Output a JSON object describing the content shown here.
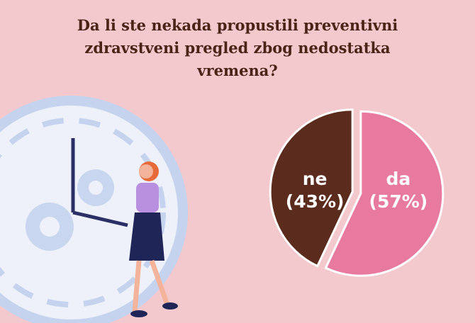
{
  "chart_data": {
    "type": "pie",
    "title": "Da li ste nekada propustili preventivni zdravstveni pregled zbog nedostatka vremena?",
    "categories": [
      "da",
      "ne"
    ],
    "values": [
      57,
      43
    ],
    "value_labels": [
      "(57%)",
      "(43%)"
    ],
    "colors": [
      "#e97a9f",
      "#5b2c1d"
    ]
  }
}
